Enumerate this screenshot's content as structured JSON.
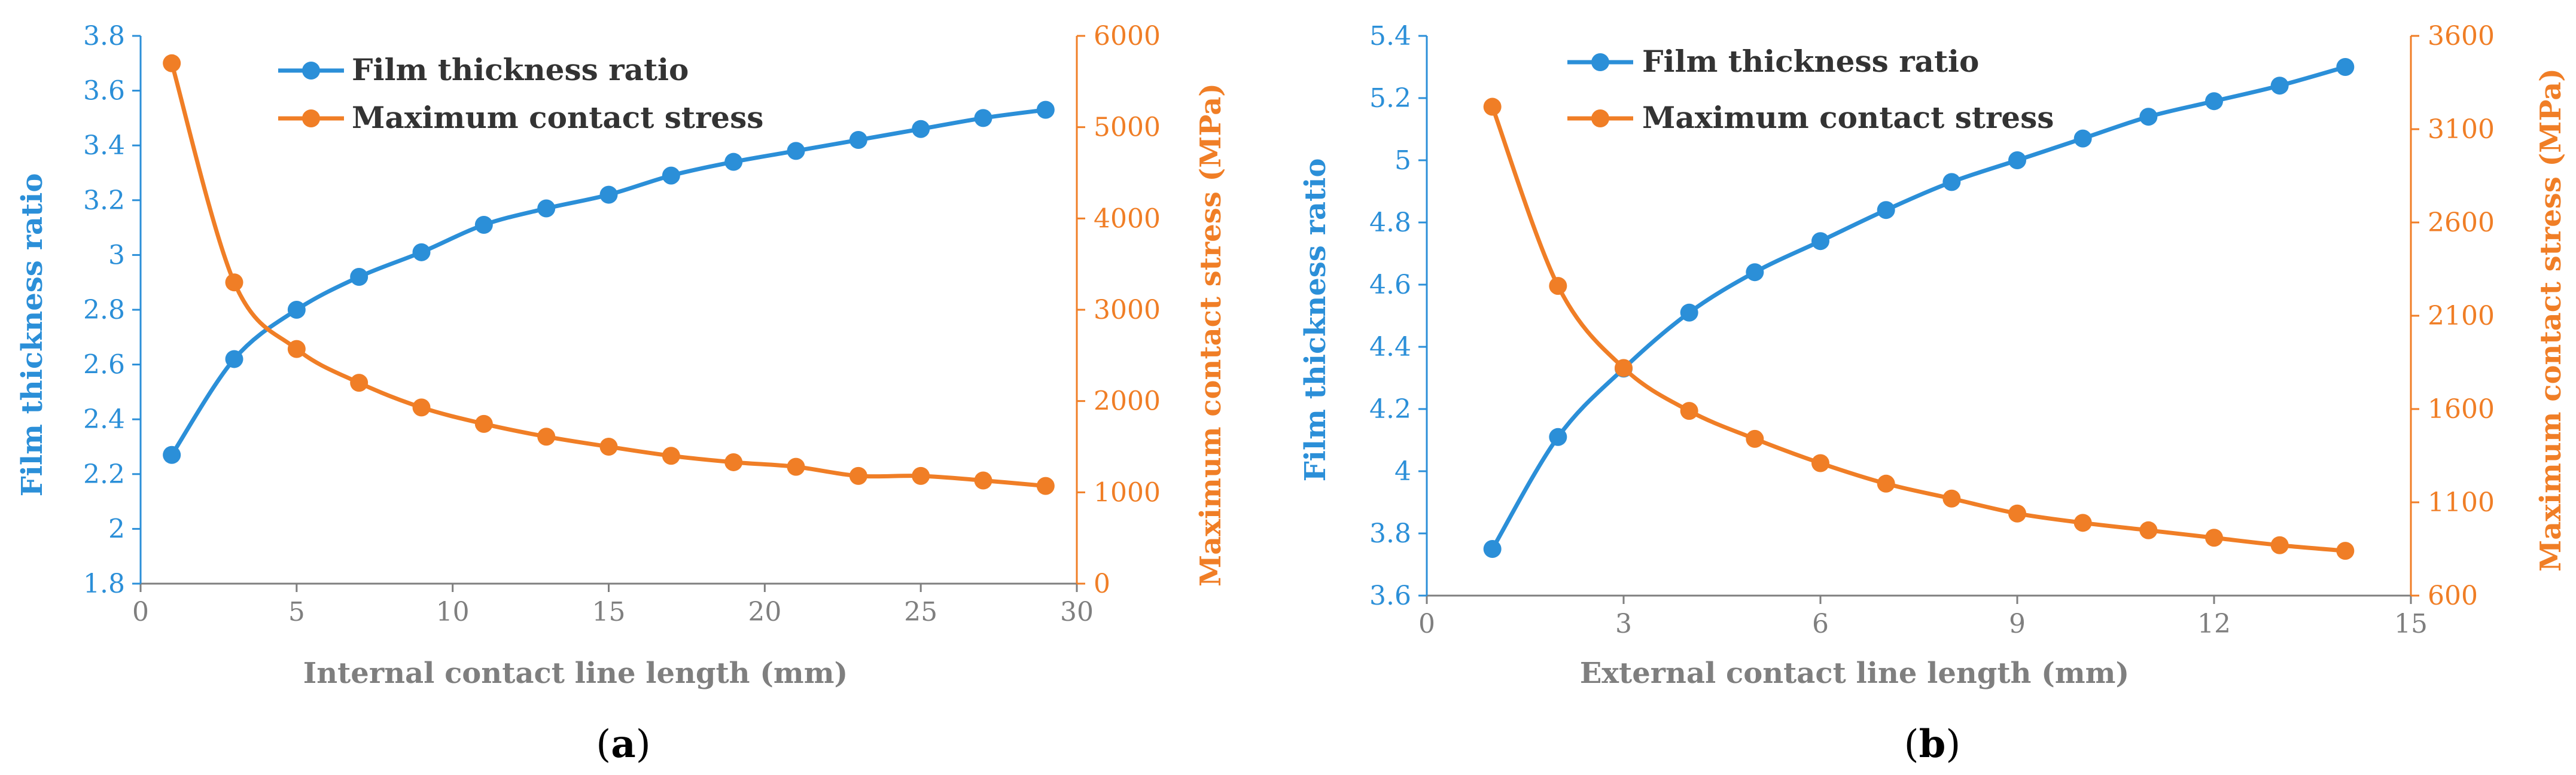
{
  "colors": {
    "left_series": "#2B8FD8",
    "right_series": "#F07E26",
    "axis": "#7F7F7F",
    "bottom_text": "#7F7F7F",
    "panel_label": "#000000"
  },
  "chart_data": [
    {
      "type": "line",
      "panel_label": "(a)",
      "panel_label_parts": {
        "open": "(",
        "letter": "a",
        "close": ")"
      },
      "xlabel": "Internal contact line length (mm)",
      "ylabel_left": "Film thickness ratio",
      "ylabel_right": "Maximum contact stress (MPa)",
      "xlim": [
        0,
        30
      ],
      "xticks": [
        0,
        5,
        10,
        15,
        20,
        25,
        30
      ],
      "ylim_left": [
        1.8,
        3.8
      ],
      "yticks_left": [
        1.8,
        2,
        2.2,
        2.4,
        2.6,
        2.8,
        3,
        3.2,
        3.4,
        3.6,
        3.8
      ],
      "ylim_right": [
        0,
        6000
      ],
      "yticks_right": [
        0,
        1000,
        2000,
        3000,
        4000,
        5000,
        6000
      ],
      "legend": [
        "Film thickness ratio",
        "Maximum contact stress"
      ],
      "series": [
        {
          "name": "Film thickness ratio",
          "axis": "left",
          "x": [
            1,
            3,
            5,
            7,
            9,
            11,
            13,
            15,
            17,
            19,
            21,
            23,
            25,
            27,
            29
          ],
          "values": [
            2.27,
            2.62,
            2.8,
            2.92,
            3.01,
            3.11,
            3.17,
            3.22,
            3.29,
            3.34,
            3.38,
            3.42,
            3.46,
            3.5,
            3.53
          ]
        },
        {
          "name": "Maximum contact stress",
          "axis": "right",
          "x": [
            1,
            3,
            5,
            7,
            9,
            11,
            13,
            15,
            17,
            19,
            21,
            23,
            25,
            27,
            29
          ],
          "values": [
            5700,
            3300,
            2570,
            2200,
            1930,
            1750,
            1610,
            1500,
            1400,
            1330,
            1280,
            1180,
            1180,
            1130,
            1070
          ]
        }
      ]
    },
    {
      "type": "line",
      "panel_label": "(b)",
      "panel_label_parts": {
        "open": "(",
        "letter": "b",
        "close": ")"
      },
      "xlabel": "External contact line length (mm)",
      "ylabel_left": "Film thickness ratio",
      "ylabel_right": "Maximum contact stress (MPa)",
      "xlim": [
        0,
        15
      ],
      "xticks": [
        0,
        3,
        6,
        9,
        12,
        15
      ],
      "ylim_left": [
        3.6,
        5.4
      ],
      "yticks_left": [
        3.6,
        3.8,
        4,
        4.2,
        4.4,
        4.6,
        4.8,
        5,
        5.2,
        5.4
      ],
      "ylim_right": [
        600,
        3600
      ],
      "yticks_right": [
        600,
        1100,
        1600,
        2100,
        2600,
        3100,
        3600
      ],
      "legend": [
        "Film thickness ratio",
        "Maximum contact stress"
      ],
      "series": [
        {
          "name": "Film thickness ratio",
          "axis": "left",
          "x": [
            1,
            2,
            3,
            4,
            5,
            6,
            7,
            8,
            9,
            10,
            11,
            12,
            13,
            14
          ],
          "values": [
            3.75,
            4.11,
            4.33,
            4.51,
            4.64,
            4.74,
            4.84,
            4.93,
            5.0,
            5.07,
            5.14,
            5.19,
            5.24,
            5.3
          ]
        },
        {
          "name": "Maximum contact stress",
          "axis": "right",
          "x": [
            1,
            2,
            3,
            4,
            5,
            6,
            7,
            8,
            9,
            10,
            11,
            12,
            13,
            14
          ],
          "values": [
            3220,
            2260,
            1820,
            1590,
            1440,
            1310,
            1200,
            1120,
            1040,
            990,
            950,
            910,
            870,
            840
          ]
        }
      ]
    }
  ]
}
